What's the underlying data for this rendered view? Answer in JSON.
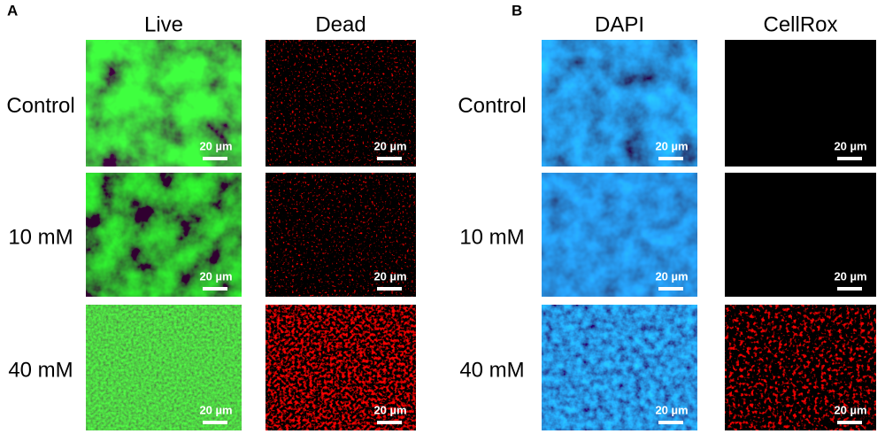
{
  "panels": [
    {
      "label": "A",
      "columns": [
        "Live",
        "Dead"
      ],
      "rows": [
        "Control",
        "10 mM",
        "40 mM"
      ],
      "scale_bars": [
        [
          "20 µm",
          "20 µm"
        ],
        [
          "20 µm",
          "20 µm"
        ],
        [
          "20 µm",
          "20 µm"
        ]
      ]
    },
    {
      "label": "B",
      "columns": [
        "DAPI",
        "CellRox"
      ],
      "rows": [
        "Control",
        "10 mM",
        "40 mM"
      ],
      "scale_bars": [
        [
          "20 µm",
          "20 µm"
        ],
        [
          "20 µm",
          "20 µm"
        ],
        [
          "20 µm",
          "20 µm"
        ]
      ]
    }
  ]
}
